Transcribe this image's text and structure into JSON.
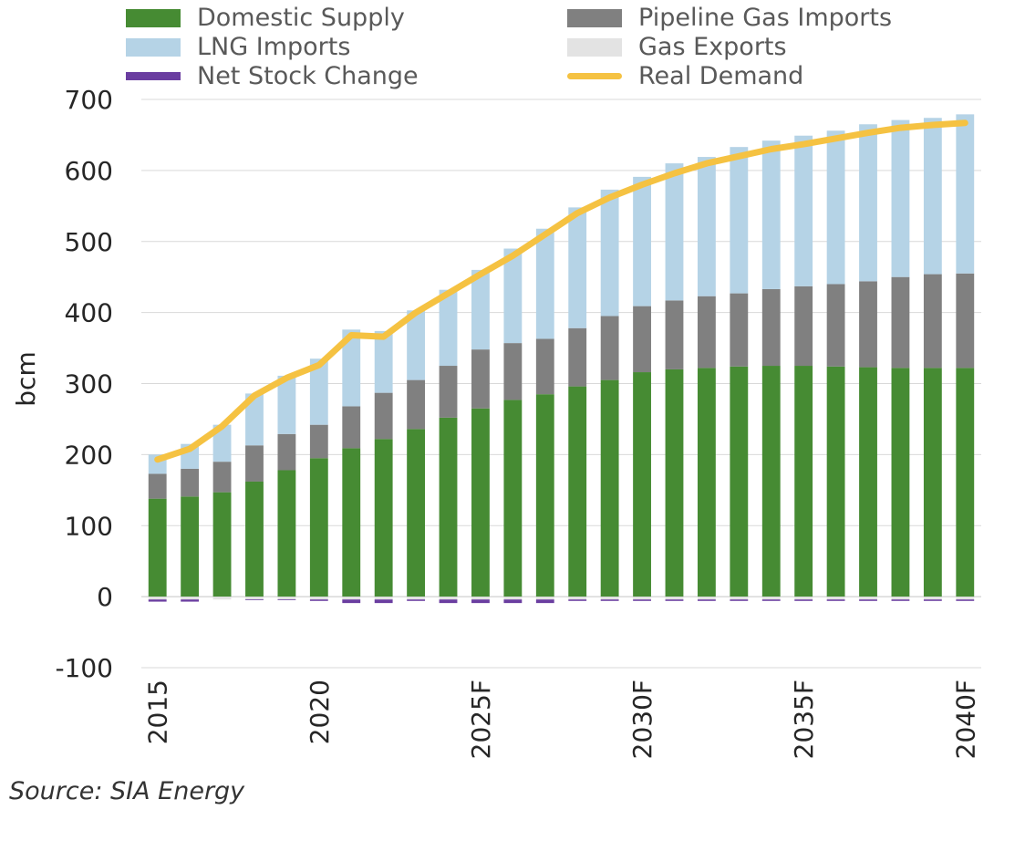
{
  "chart_data": {
    "type": "bar",
    "stacked": true,
    "ylabel": "bcm",
    "xlabel": "",
    "ylim": [
      -100,
      700
    ],
    "yticks": [
      -100,
      0,
      100,
      200,
      300,
      400,
      500,
      600,
      700
    ],
    "categories": [
      "2015",
      "2016",
      "2017",
      "2018",
      "2019",
      "2020",
      "2021",
      "2022",
      "2023",
      "2024",
      "2025F",
      "2026F",
      "2027F",
      "2028F",
      "2029F",
      "2030F",
      "2031F",
      "2032F",
      "2033F",
      "2034F",
      "2035F",
      "2036F",
      "2037F",
      "2038F",
      "2039F",
      "2040F"
    ],
    "xtick_labels": [
      "2015",
      "2020",
      "2025F",
      "2030F",
      "2035F",
      "2040F"
    ],
    "series": [
      {
        "name": "Domestic Supply",
        "color": "#468b33",
        "values": [
          138,
          141,
          147,
          162,
          178,
          195,
          209,
          222,
          236,
          252,
          265,
          277,
          285,
          296,
          305,
          316,
          320,
          322,
          324,
          325,
          325,
          324,
          323,
          322,
          322,
          322
        ]
      },
      {
        "name": "Pipeline Gas Imports",
        "color": "#808080",
        "values": [
          35,
          39,
          43,
          51,
          51,
          47,
          59,
          65,
          69,
          73,
          83,
          80,
          78,
          82,
          90,
          93,
          97,
          101,
          103,
          108,
          112,
          116,
          121,
          128,
          132,
          133
        ]
      },
      {
        "name": "LNG Imports",
        "color": "#b5d3e6",
        "values": [
          27,
          35,
          52,
          73,
          82,
          93,
          108,
          87,
          98,
          107,
          112,
          133,
          155,
          170,
          178,
          182,
          193,
          196,
          206,
          209,
          212,
          216,
          221,
          221,
          220,
          224
        ]
      },
      {
        "name": "Gas Exports",
        "color": "#e3e3e3",
        "values": [
          -4,
          -4,
          -4,
          -4,
          -4,
          -4,
          -4,
          -4,
          -4,
          -4,
          -4,
          -4,
          -4,
          -4,
          -4,
          -4,
          -4,
          -4,
          -4,
          -4,
          -4,
          -4,
          -4,
          -4,
          -4,
          -4
        ]
      },
      {
        "name": "Net Stock Change",
        "color": "#6a3da0",
        "values": [
          -3,
          -3,
          0,
          -1,
          -1,
          -2,
          -5,
          -5,
          -2,
          -5,
          -5,
          -5,
          -5,
          -2,
          -2,
          -2,
          -2,
          -2,
          -2,
          -2,
          -2,
          -2,
          -2,
          -2,
          -2,
          -2
        ]
      }
    ],
    "line": {
      "name": "Real Demand",
      "color": "#f5c242",
      "values": [
        193,
        208,
        240,
        283,
        308,
        326,
        368,
        366,
        400,
        427,
        454,
        480,
        510,
        540,
        562,
        580,
        596,
        610,
        620,
        630,
        637,
        645,
        653,
        660,
        664,
        667
      ]
    },
    "legend": {
      "domestic_supply": "Domestic Supply",
      "pipeline_gas_imports": "Pipeline Gas Imports",
      "lng_imports": "LNG Imports",
      "gas_exports": "Gas Exports",
      "net_stock_change": "Net Stock Change",
      "real_demand": "Real Demand"
    }
  },
  "colors": {
    "domestic": "#468b33",
    "pipeline": "#808080",
    "lng": "#b5d3e6",
    "exports": "#e3e3e3",
    "stock": "#6a3da0",
    "demand": "#f5c242",
    "grid": "#d9d9d9"
  },
  "source": "Source: SIA Energy"
}
